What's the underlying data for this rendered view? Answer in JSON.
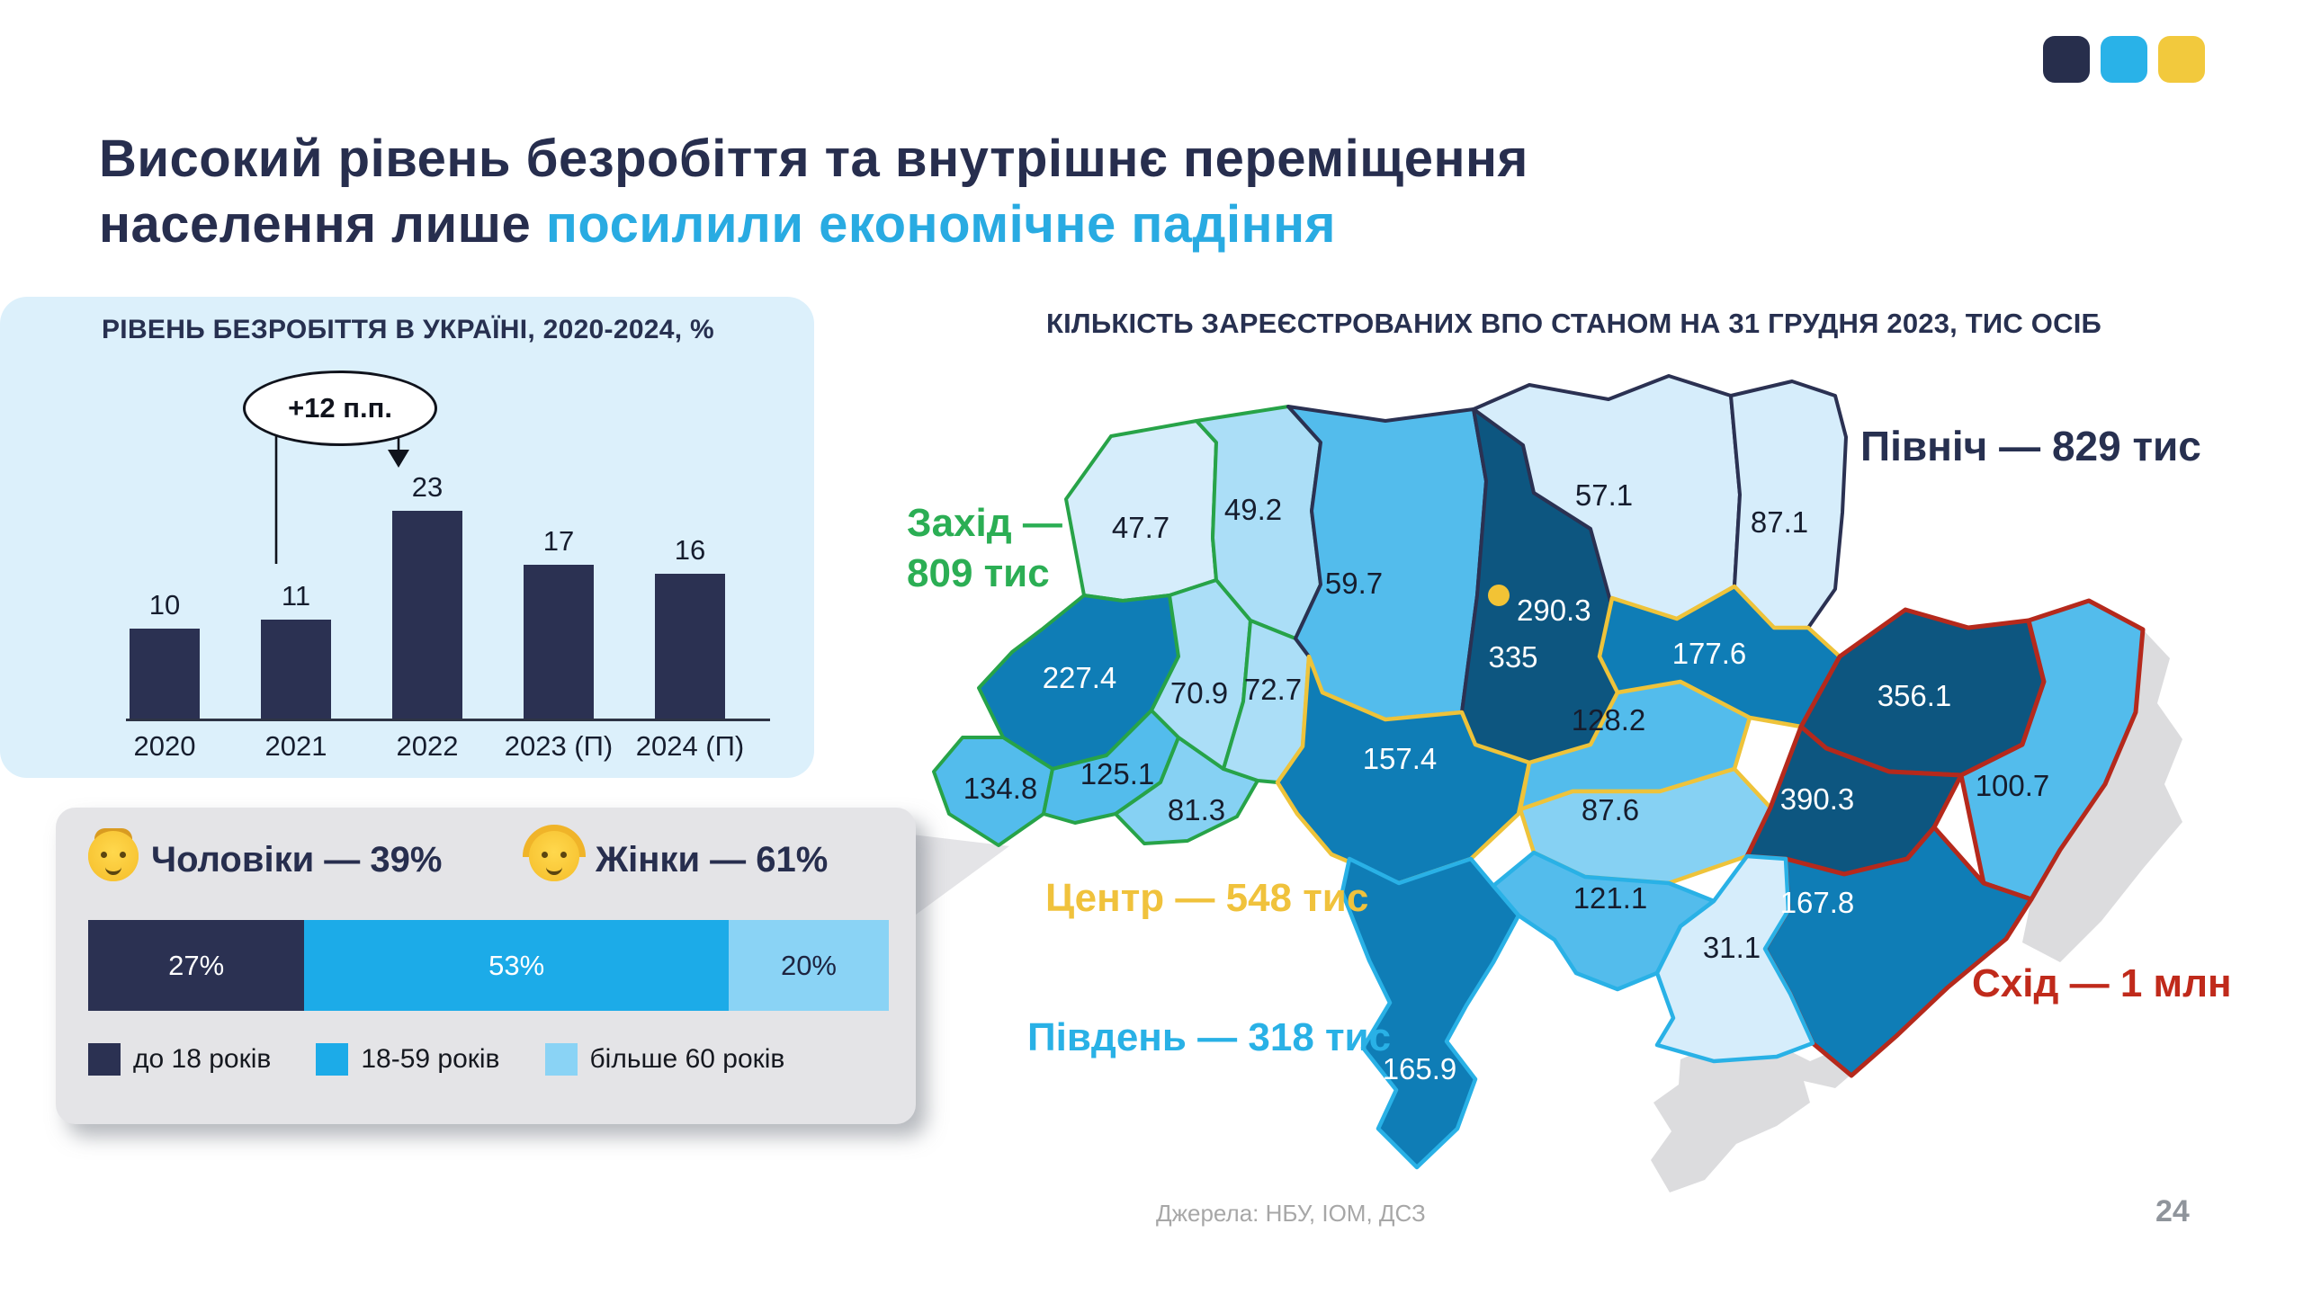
{
  "brand": {
    "colors": [
      "#272e4c",
      "#29b2e8",
      "#f2c93d"
    ]
  },
  "title": {
    "line1": "Високий рівень безробіття та внутрішнє переміщення",
    "line2_prefix": "населення лише ",
    "line2_accent": "посилили економічне падіння",
    "accent_color": "#29abe2",
    "text_color": "#272e4e"
  },
  "unemployment": {
    "title": "РІВЕНЬ БЕЗРОБІТТЯ В УКРАЇНІ, 2020-2024, %",
    "annotation": "+12 п.п."
  },
  "demographics": {
    "man_icon": "man-emoji",
    "woman_icon": "woman-emoji",
    "men_label": "Чоловіки — 39%",
    "women_label": "Жінки — 61%",
    "segments": [
      {
        "label": "27%",
        "legend": "до 18 років",
        "color": "#2b3152",
        "text_color": "#ffffff"
      },
      {
        "label": "53%",
        "legend": "18-59 років",
        "color": "#1cabe8",
        "text_color": "#ffffff"
      },
      {
        "label": "20%",
        "legend": "більше 60 років",
        "color": "#8ad3f5",
        "text_color": "#1d2440"
      }
    ]
  },
  "map": {
    "title": "КІЛЬКІСТЬ ЗАРЕЄСТРОВАНИХ ВПО СТАНОМ НА 31 ГРУДНЯ 2023, ТИС ОСІБ",
    "group_labels": {
      "west_line1": "Захід —",
      "west_line2": "809 тис",
      "north": "Північ — 829 тис",
      "center": "Центр — 548 тис",
      "south": "Південь — 318 тис",
      "east": "Схід — 1 млн"
    },
    "group_colors": {
      "west": "#2bae54",
      "north": "#273050",
      "center": "#f0c23c",
      "south": "#29b1e6",
      "east": "#c02a1b"
    },
    "capital_dot_color": "#f2c335",
    "regions": [
      {
        "value": "47.7"
      },
      {
        "value": "49.2"
      },
      {
        "value": "227.4"
      },
      {
        "value": "134.8"
      },
      {
        "value": "125.1"
      },
      {
        "value": "81.3"
      },
      {
        "value": "70.9"
      },
      {
        "value": "72.7"
      },
      {
        "value": "59.7"
      },
      {
        "value": "335"
      },
      {
        "value": "290.3"
      },
      {
        "value": "57.1"
      },
      {
        "value": "87.1"
      },
      {
        "value": "157.4"
      },
      {
        "value": "128.2"
      },
      {
        "value": "87.6"
      },
      {
        "value": "177.6"
      },
      {
        "value": "356.1"
      },
      {
        "value": "100.7"
      },
      {
        "value": "390.3"
      },
      {
        "value": "167.8"
      },
      {
        "value": "121.1"
      },
      {
        "value": "31.1"
      },
      {
        "value": "165.9"
      }
    ]
  },
  "footer": {
    "sources": "Джерела: НБУ, ІОМ, ДСЗ",
    "page_number": "24"
  },
  "chart_data": [
    {
      "type": "bar",
      "title": "РІВЕНЬ БЕЗРОБІТТЯ В УКРАЇНІ, 2020-2024, %",
      "categories": [
        "2020",
        "2021",
        "2022",
        "2023 (П)",
        "2024 (П)"
      ],
      "values": [
        10,
        11,
        23,
        17,
        16
      ],
      "annotation": "+12 п.п.",
      "xlabel": "",
      "ylabel": "%",
      "ylim": [
        0,
        25
      ],
      "grid": false,
      "bar_color": "#2b3152"
    },
    {
      "type": "bar",
      "subtype": "horizontal-stacked-100",
      "title": "",
      "categories": [
        "до 18 років",
        "18-59 років",
        "більше 60 років"
      ],
      "values": [
        27,
        53,
        20
      ],
      "unit": "%",
      "gender": {
        "Чоловіки": 39,
        "Жінки": 61
      }
    },
    {
      "type": "heatmap",
      "subtype": "choropleth-map-ukraine",
      "title": "КІЛЬКІСТЬ ЗАРЕЄСТРОВАНИХ ВПО СТАНОМ НА 31 ГРУДНЯ 2023, ТИС ОСІБ",
      "unit": "тис осіб",
      "region_values": [
        47.7,
        49.2,
        227.4,
        134.8,
        125.1,
        81.3,
        70.9,
        72.7,
        59.7,
        335,
        290.3,
        57.1,
        87.1,
        157.4,
        128.2,
        87.6,
        177.6,
        356.1,
        100.7,
        390.3,
        167.8,
        121.1,
        31.1,
        165.9
      ],
      "macro_totals": {
        "Захід": "809 тис",
        "Північ": "829 тис",
        "Центр": "548 тис",
        "Південь": "318 тис",
        "Схід": "1 млн"
      }
    }
  ]
}
